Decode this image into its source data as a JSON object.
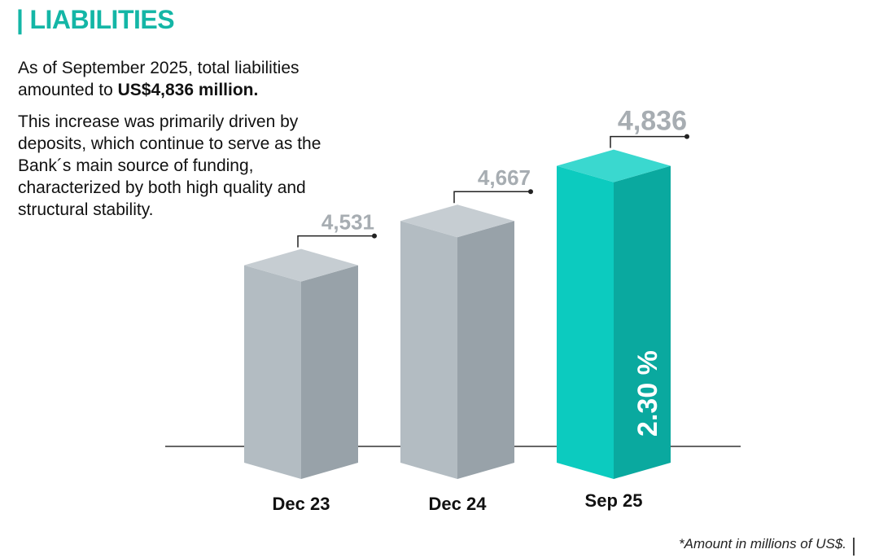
{
  "header": {
    "title": "LIABILITIES"
  },
  "intro": {
    "p1_text": "As of September 2025, total liabilities amounted to ",
    "p1_bold": "US$4,836 million.",
    "p2": "This increase was primarily driven by deposits, which continue to serve as the Bank´s main source of funding, characterized by both high quality and structural stability."
  },
  "chart_data": {
    "type": "bar",
    "categories": [
      "Dec 23",
      "Dec 24",
      "Sep 25"
    ],
    "values": [
      4531,
      4667,
      4836
    ],
    "value_labels": [
      "4,531",
      "4,667",
      "4,836"
    ],
    "highlight_index": 2,
    "highlight_annotation": "2.30 %",
    "title": "",
    "xlabel": "",
    "ylabel": ""
  },
  "footnote": "*Amount in millions of US$.",
  "colors": {
    "accent": "#14b6a6",
    "teal_front": "#0ccbbf",
    "teal_side": "#0aa99f",
    "teal_top": "#3ad8cf",
    "gray_front": "#b3bcc2",
    "gray_side": "#98a2a9",
    "gray_top": "#c6cdd2",
    "label_gray": "#a7adb2"
  }
}
